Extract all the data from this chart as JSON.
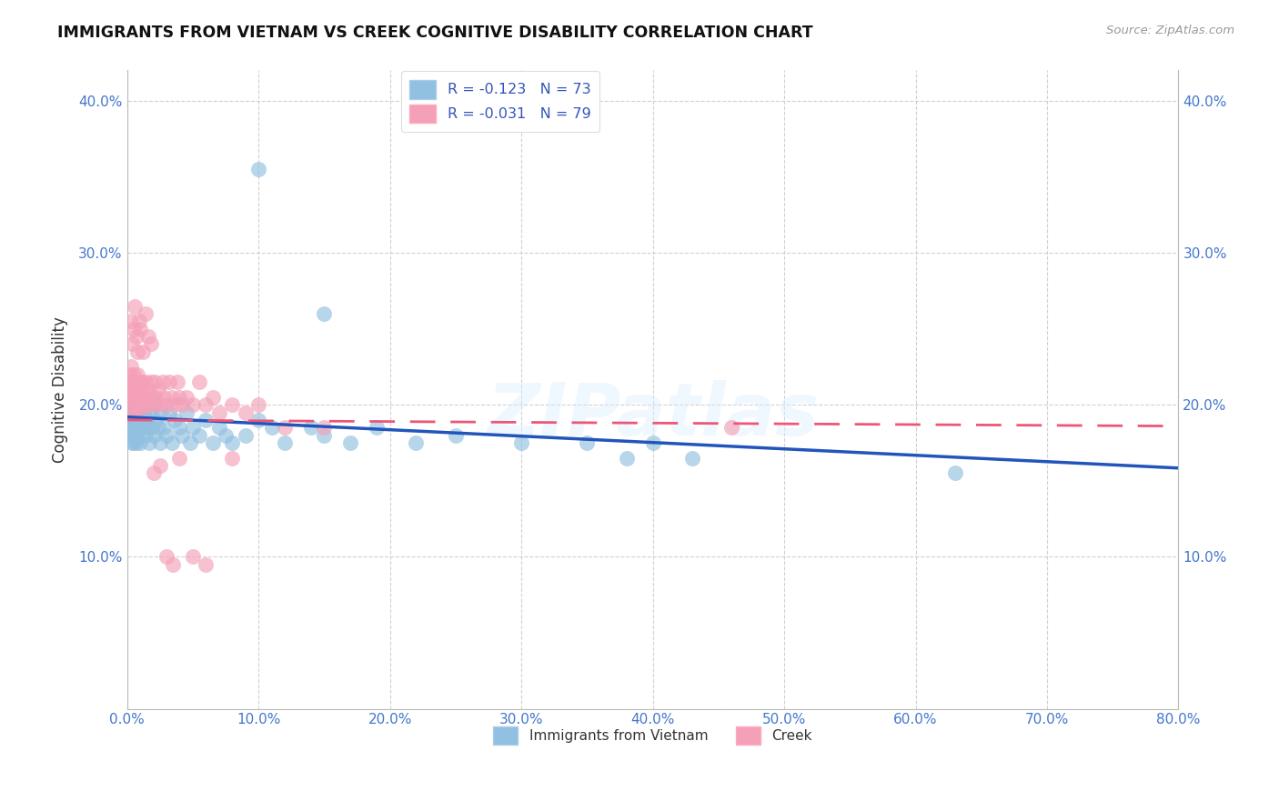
{
  "title": "IMMIGRANTS FROM VIETNAM VS CREEK COGNITIVE DISABILITY CORRELATION CHART",
  "source": "Source: ZipAtlas.com",
  "ylabel": "Cognitive Disability",
  "xlim": [
    0.0,
    0.8
  ],
  "ylim": [
    0.0,
    0.42
  ],
  "xticks": [
    0.0,
    0.1,
    0.2,
    0.3,
    0.4,
    0.5,
    0.6,
    0.7,
    0.8
  ],
  "yticks": [
    0.0,
    0.1,
    0.2,
    0.3,
    0.4
  ],
  "vietnam_color": "#92C0E0",
  "creek_color": "#F4A0B8",
  "vietnam_line_color": "#2255BB",
  "creek_line_color": "#EE5577",
  "vietnam_R": -0.123,
  "vietnam_N": 73,
  "creek_R": -0.031,
  "creek_N": 79,
  "legend_label_vietnam": "Immigrants from Vietnam",
  "legend_label_creek": "Creek",
  "watermark": "ZIPatlas",
  "background_color": "#ffffff",
  "grid_color": "#cccccc",
  "vietnam_intercept": 0.192,
  "vietnam_slope": -0.042,
  "creek_intercept": 0.19,
  "creek_slope": -0.005,
  "vietnam_x": [
    0.001,
    0.002,
    0.002,
    0.003,
    0.003,
    0.004,
    0.004,
    0.004,
    0.005,
    0.005,
    0.005,
    0.006,
    0.006,
    0.006,
    0.007,
    0.007,
    0.007,
    0.008,
    0.008,
    0.009,
    0.009,
    0.01,
    0.01,
    0.011,
    0.012,
    0.012,
    0.013,
    0.014,
    0.015,
    0.016,
    0.017,
    0.018,
    0.019,
    0.02,
    0.021,
    0.022,
    0.024,
    0.025,
    0.026,
    0.028,
    0.03,
    0.032,
    0.034,
    0.036,
    0.04,
    0.042,
    0.045,
    0.048,
    0.05,
    0.055,
    0.06,
    0.065,
    0.07,
    0.075,
    0.08,
    0.09,
    0.1,
    0.11,
    0.12,
    0.14,
    0.15,
    0.17,
    0.19,
    0.22,
    0.25,
    0.3,
    0.35,
    0.38,
    0.4,
    0.43,
    0.15,
    0.1,
    0.63
  ],
  "vietnam_y": [
    0.19,
    0.185,
    0.195,
    0.185,
    0.18,
    0.19,
    0.175,
    0.2,
    0.195,
    0.185,
    0.175,
    0.19,
    0.2,
    0.18,
    0.195,
    0.185,
    0.175,
    0.19,
    0.18,
    0.195,
    0.185,
    0.2,
    0.175,
    0.195,
    0.185,
    0.19,
    0.195,
    0.18,
    0.185,
    0.19,
    0.175,
    0.195,
    0.185,
    0.18,
    0.2,
    0.19,
    0.185,
    0.175,
    0.195,
    0.185,
    0.18,
    0.195,
    0.175,
    0.19,
    0.185,
    0.18,
    0.195,
    0.175,
    0.185,
    0.18,
    0.19,
    0.175,
    0.185,
    0.18,
    0.175,
    0.18,
    0.19,
    0.185,
    0.175,
    0.185,
    0.18,
    0.175,
    0.185,
    0.175,
    0.18,
    0.175,
    0.175,
    0.165,
    0.175,
    0.165,
    0.26,
    0.355,
    0.155
  ],
  "creek_x": [
    0.001,
    0.001,
    0.002,
    0.002,
    0.003,
    0.003,
    0.003,
    0.004,
    0.004,
    0.005,
    0.005,
    0.005,
    0.006,
    0.006,
    0.007,
    0.007,
    0.008,
    0.008,
    0.009,
    0.009,
    0.01,
    0.01,
    0.011,
    0.011,
    0.012,
    0.012,
    0.013,
    0.014,
    0.015,
    0.016,
    0.017,
    0.018,
    0.019,
    0.02,
    0.021,
    0.022,
    0.024,
    0.025,
    0.027,
    0.028,
    0.03,
    0.032,
    0.034,
    0.036,
    0.038,
    0.04,
    0.042,
    0.045,
    0.05,
    0.055,
    0.06,
    0.065,
    0.07,
    0.08,
    0.09,
    0.1,
    0.12,
    0.15,
    0.003,
    0.004,
    0.005,
    0.006,
    0.007,
    0.008,
    0.009,
    0.01,
    0.012,
    0.014,
    0.016,
    0.018,
    0.02,
    0.025,
    0.03,
    0.035,
    0.04,
    0.05,
    0.06,
    0.08,
    0.46
  ],
  "creek_y": [
    0.21,
    0.215,
    0.205,
    0.22,
    0.195,
    0.21,
    0.225,
    0.2,
    0.215,
    0.205,
    0.22,
    0.195,
    0.21,
    0.205,
    0.215,
    0.2,
    0.205,
    0.22,
    0.21,
    0.195,
    0.215,
    0.205,
    0.2,
    0.215,
    0.205,
    0.21,
    0.2,
    0.215,
    0.205,
    0.21,
    0.2,
    0.215,
    0.205,
    0.2,
    0.215,
    0.205,
    0.21,
    0.2,
    0.215,
    0.205,
    0.2,
    0.215,
    0.205,
    0.2,
    0.215,
    0.205,
    0.2,
    0.205,
    0.2,
    0.215,
    0.2,
    0.205,
    0.195,
    0.2,
    0.195,
    0.2,
    0.185,
    0.185,
    0.255,
    0.24,
    0.25,
    0.265,
    0.245,
    0.235,
    0.255,
    0.25,
    0.235,
    0.26,
    0.245,
    0.24,
    0.155,
    0.16,
    0.1,
    0.095,
    0.165,
    0.1,
    0.095,
    0.165,
    0.185
  ]
}
